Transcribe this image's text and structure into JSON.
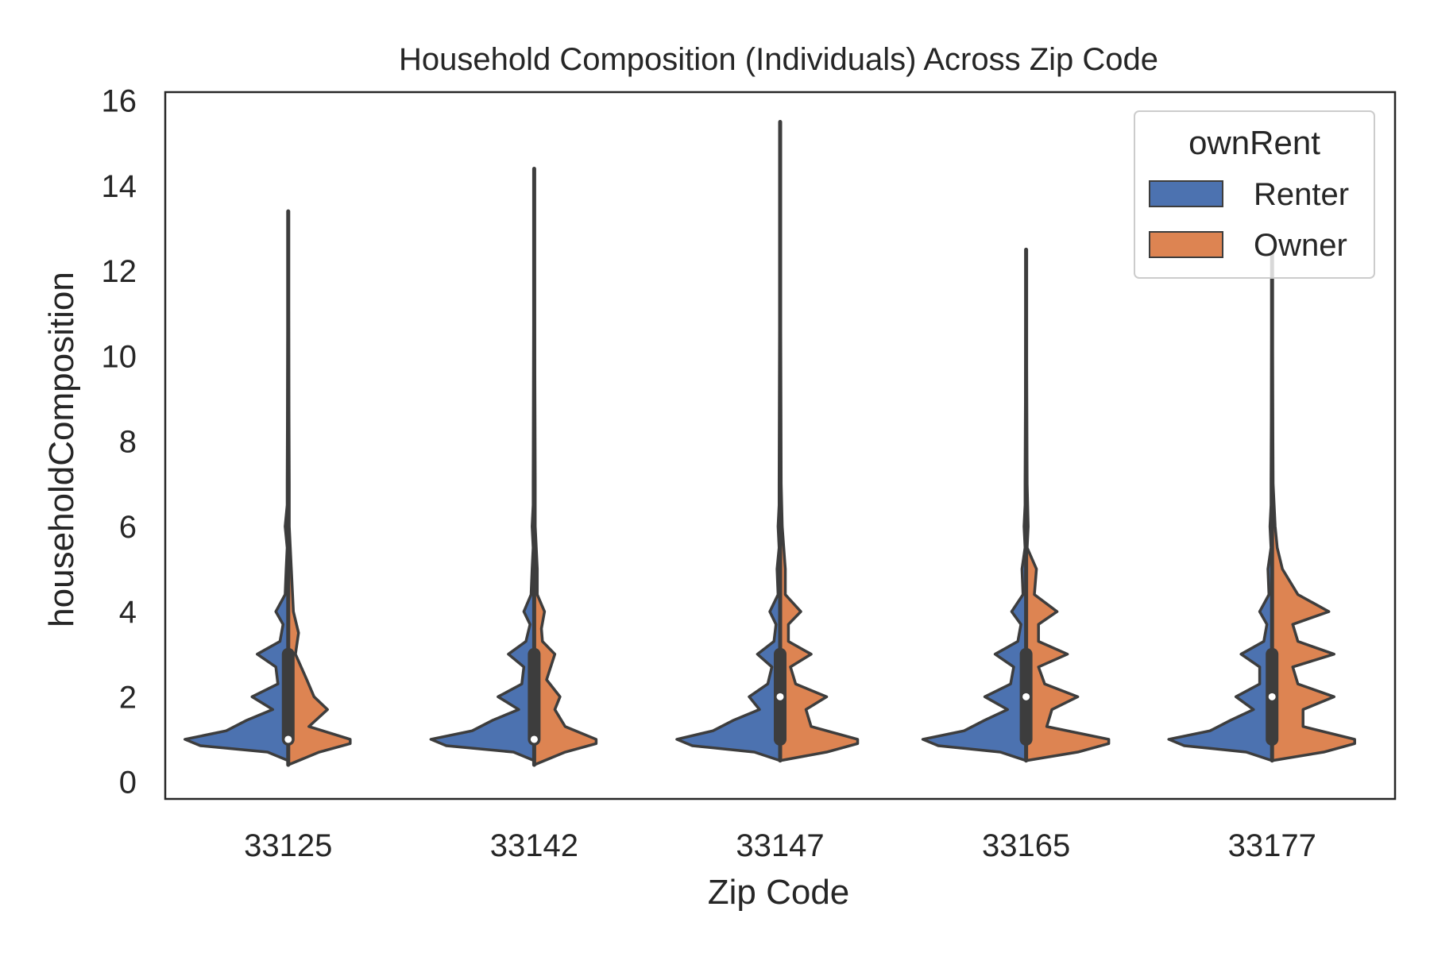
{
  "chart_data": {
    "type": "violin",
    "title": "Household Composition (Individuals) Across Zip Code",
    "xlabel": "Zip Code",
    "ylabel": "householdComposition",
    "ylim": [
      -0.4,
      16.2
    ],
    "yticks": [
      0,
      2,
      4,
      6,
      8,
      10,
      12,
      14,
      16
    ],
    "categories": [
      "33125",
      "33142",
      "33147",
      "33165",
      "33177"
    ],
    "grid": false,
    "split": true,
    "legend": {
      "title": "ownRent",
      "placement": "top-right",
      "entries": [
        {
          "label": "Renter",
          "color": "#4c72b0"
        },
        {
          "label": "Owner",
          "color": "#dd8452"
        }
      ]
    },
    "series": [
      {
        "name": "Renter",
        "color": "#4c72b0",
        "max": [
          13.4,
          14.4,
          15.5,
          12.5,
          12.4
        ],
        "min": [
          0.6,
          0.6,
          0.5,
          0.5,
          0.5
        ],
        "medians": [
          1,
          1,
          2,
          2,
          2
        ],
        "q1": [
          1,
          1,
          1,
          1,
          1
        ],
        "q3": [
          3,
          3,
          3,
          3,
          3
        ],
        "density": [
          [
            [
              0.5,
              0
            ],
            [
              0.7,
              0.2
            ],
            [
              0.85,
              0.85
            ],
            [
              1,
              1
            ],
            [
              1.2,
              0.6
            ],
            [
              1.45,
              0.4
            ],
            [
              1.7,
              0.15
            ],
            [
              2,
              0.35
            ],
            [
              2.3,
              0.1
            ],
            [
              2.7,
              0.12
            ],
            [
              3,
              0.3
            ],
            [
              3.3,
              0.08
            ],
            [
              3.7,
              0.05
            ],
            [
              4,
              0.12
            ],
            [
              4.4,
              0.03
            ],
            [
              5,
              0.02
            ],
            [
              5.5,
              0.01
            ],
            [
              6,
              0.03
            ],
            [
              6.5,
              0.01
            ],
            [
              7,
              0.01
            ],
            [
              13.4,
              0
            ]
          ],
          [
            [
              0.5,
              0
            ],
            [
              0.7,
              0.2
            ],
            [
              0.85,
              0.85
            ],
            [
              1,
              1
            ],
            [
              1.2,
              0.6
            ],
            [
              1.45,
              0.4
            ],
            [
              1.7,
              0.15
            ],
            [
              2,
              0.35
            ],
            [
              2.3,
              0.12
            ],
            [
              2.7,
              0.1
            ],
            [
              3,
              0.25
            ],
            [
              3.3,
              0.08
            ],
            [
              3.7,
              0.04
            ],
            [
              4,
              0.1
            ],
            [
              4.4,
              0.03
            ],
            [
              5,
              0.02
            ],
            [
              5.5,
              0.01
            ],
            [
              6,
              0.02
            ],
            [
              6.5,
              0.01
            ],
            [
              7,
              0.01
            ],
            [
              14.4,
              0
            ]
          ],
          [
            [
              0.5,
              0
            ],
            [
              0.7,
              0.25
            ],
            [
              0.85,
              0.85
            ],
            [
              1,
              1
            ],
            [
              1.2,
              0.65
            ],
            [
              1.45,
              0.45
            ],
            [
              1.7,
              0.2
            ],
            [
              2,
              0.3
            ],
            [
              2.3,
              0.12
            ],
            [
              2.7,
              0.08
            ],
            [
              3,
              0.22
            ],
            [
              3.3,
              0.06
            ],
            [
              3.7,
              0.04
            ],
            [
              4,
              0.1
            ],
            [
              4.4,
              0.02
            ],
            [
              5,
              0.03
            ],
            [
              5.5,
              0.01
            ],
            [
              6,
              0.02
            ],
            [
              6.5,
              0.01
            ],
            [
              7,
              0.01
            ],
            [
              15.5,
              0
            ]
          ],
          [
            [
              0.5,
              0
            ],
            [
              0.7,
              0.25
            ],
            [
              0.85,
              0.85
            ],
            [
              1,
              1
            ],
            [
              1.2,
              0.6
            ],
            [
              1.45,
              0.4
            ],
            [
              1.7,
              0.18
            ],
            [
              2,
              0.4
            ],
            [
              2.3,
              0.15
            ],
            [
              2.7,
              0.12
            ],
            [
              3,
              0.3
            ],
            [
              3.3,
              0.08
            ],
            [
              3.7,
              0.05
            ],
            [
              4,
              0.14
            ],
            [
              4.4,
              0.03
            ],
            [
              5,
              0.04
            ],
            [
              5.5,
              0.01
            ],
            [
              6,
              0.02
            ],
            [
              6.5,
              0.01
            ],
            [
              7,
              0.01
            ],
            [
              12.5,
              0
            ]
          ],
          [
            [
              0.5,
              0
            ],
            [
              0.7,
              0.25
            ],
            [
              0.85,
              0.85
            ],
            [
              1,
              1
            ],
            [
              1.2,
              0.6
            ],
            [
              1.45,
              0.4
            ],
            [
              1.7,
              0.18
            ],
            [
              2,
              0.35
            ],
            [
              2.3,
              0.12
            ],
            [
              2.7,
              0.12
            ],
            [
              3,
              0.3
            ],
            [
              3.3,
              0.08
            ],
            [
              3.7,
              0.05
            ],
            [
              4,
              0.12
            ],
            [
              4.4,
              0.03
            ],
            [
              5,
              0.04
            ],
            [
              5.5,
              0.01
            ],
            [
              6,
              0.02
            ],
            [
              6.5,
              0.01
            ],
            [
              7,
              0.01
            ],
            [
              12.4,
              0
            ]
          ]
        ]
      },
      {
        "name": "Owner",
        "color": "#dd8452",
        "max": [
          13.4,
          14.4,
          15.5,
          12.5,
          12.4
        ],
        "min": [
          0.4,
          0.4,
          0.5,
          0.5,
          0.5
        ],
        "medians": [
          1,
          1,
          2,
          2,
          2
        ],
        "q1": [
          1,
          1,
          1,
          1,
          1
        ],
        "q3": [
          3,
          3,
          3,
          3,
          3
        ],
        "density": [
          [
            [
              0.4,
              0
            ],
            [
              0.7,
              0.3
            ],
            [
              0.9,
              0.6
            ],
            [
              1,
              0.6
            ],
            [
              1.3,
              0.2
            ],
            [
              1.7,
              0.38
            ],
            [
              2,
              0.25
            ],
            [
              2.4,
              0.18
            ],
            [
              3,
              0.07
            ],
            [
              3.5,
              0.1
            ],
            [
              4,
              0.05
            ],
            [
              5,
              0.03
            ],
            [
              6,
              0.01
            ],
            [
              7,
              0.01
            ],
            [
              13.4,
              0
            ]
          ],
          [
            [
              0.4,
              0
            ],
            [
              0.7,
              0.3
            ],
            [
              0.9,
              0.6
            ],
            [
              1,
              0.6
            ],
            [
              1.3,
              0.3
            ],
            [
              1.7,
              0.2
            ],
            [
              2,
              0.25
            ],
            [
              2.4,
              0.12
            ],
            [
              3,
              0.2
            ],
            [
              3.3,
              0.08
            ],
            [
              3.6,
              0.07
            ],
            [
              4,
              0.1
            ],
            [
              4.4,
              0.03
            ],
            [
              5,
              0.03
            ],
            [
              6,
              0.01
            ],
            [
              7,
              0.01
            ],
            [
              14.4,
              0
            ]
          ],
          [
            [
              0.5,
              0
            ],
            [
              0.7,
              0.45
            ],
            [
              0.9,
              0.75
            ],
            [
              1,
              0.75
            ],
            [
              1.3,
              0.3
            ],
            [
              1.7,
              0.25
            ],
            [
              2,
              0.45
            ],
            [
              2.3,
              0.15
            ],
            [
              2.7,
              0.1
            ],
            [
              3,
              0.3
            ],
            [
              3.3,
              0.08
            ],
            [
              3.7,
              0.08
            ],
            [
              4,
              0.2
            ],
            [
              4.4,
              0.05
            ],
            [
              5,
              0.05
            ],
            [
              6,
              0.02
            ],
            [
              7,
              0.01
            ],
            [
              15.5,
              0
            ]
          ],
          [
            [
              0.5,
              0
            ],
            [
              0.7,
              0.5
            ],
            [
              0.9,
              0.8
            ],
            [
              1,
              0.8
            ],
            [
              1.3,
              0.2
            ],
            [
              1.7,
              0.25
            ],
            [
              2,
              0.5
            ],
            [
              2.3,
              0.18
            ],
            [
              2.7,
              0.12
            ],
            [
              3,
              0.4
            ],
            [
              3.3,
              0.12
            ],
            [
              3.7,
              0.12
            ],
            [
              4,
              0.3
            ],
            [
              4.4,
              0.08
            ],
            [
              5,
              0.1
            ],
            [
              5.5,
              0.01
            ],
            [
              6,
              0.02
            ],
            [
              7,
              0.01
            ],
            [
              12.5,
              0
            ]
          ],
          [
            [
              0.5,
              0
            ],
            [
              0.7,
              0.5
            ],
            [
              0.9,
              0.8
            ],
            [
              1,
              0.8
            ],
            [
              1.3,
              0.3
            ],
            [
              1.7,
              0.3
            ],
            [
              2,
              0.6
            ],
            [
              2.3,
              0.25
            ],
            [
              2.7,
              0.2
            ],
            [
              3,
              0.6
            ],
            [
              3.3,
              0.25
            ],
            [
              3.7,
              0.2
            ],
            [
              4,
              0.55
            ],
            [
              4.4,
              0.25
            ],
            [
              5,
              0.1
            ],
            [
              5.5,
              0.05
            ],
            [
              6,
              0.03
            ],
            [
              7,
              0.01
            ],
            [
              12.4,
              0
            ]
          ]
        ]
      }
    ]
  }
}
